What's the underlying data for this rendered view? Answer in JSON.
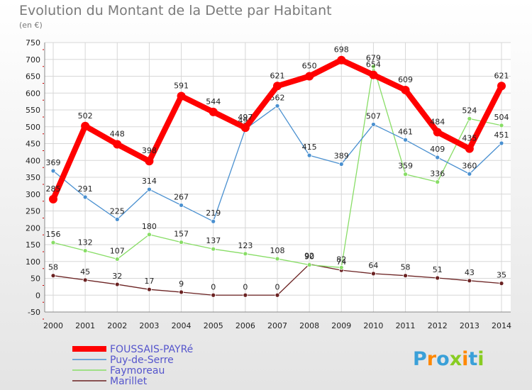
{
  "chart_data": {
    "type": "line",
    "title": "Evolution du Montant de la Dette par Habitant",
    "subtitle": "(en €)",
    "x": [
      "2000",
      "2001",
      "2002",
      "2003",
      "2004",
      "2005",
      "2006",
      "2007",
      "2008",
      "2009",
      "2010",
      "2011",
      "2012",
      "2013",
      "2014"
    ],
    "ylim": [
      -50,
      750
    ],
    "yticks": [
      -50,
      0,
      50,
      100,
      150,
      200,
      250,
      300,
      350,
      400,
      450,
      500,
      550,
      600,
      650,
      700,
      750
    ],
    "grid": true,
    "legend_position": "bottom-left",
    "series": [
      {
        "name": "FOUSSAIS-PAYRé",
        "color": "#ff0000",
        "values": [
          285,
          502,
          448,
          398,
          591,
          544,
          497,
          621,
          650,
          698,
          654,
          609,
          484,
          435,
          621
        ]
      },
      {
        "name": "Puy-de-Serre",
        "color": "#4a90d0",
        "values": [
          369,
          291,
          225,
          314,
          267,
          219,
          493,
          562,
          415,
          389,
          507,
          461,
          409,
          360,
          451
        ]
      },
      {
        "name": "Faymoreau",
        "color": "#88dd66",
        "values": [
          156,
          132,
          107,
          180,
          157,
          137,
          123,
          108,
          90,
          82,
          679,
          359,
          336,
          524,
          504
        ]
      },
      {
        "name": "Marillet",
        "color": "#6b2222",
        "values": [
          58,
          45,
          32,
          17,
          9,
          0,
          0,
          0,
          92,
          74,
          64,
          58,
          51,
          43,
          35
        ]
      }
    ]
  },
  "logo": {
    "text": "Proxiti"
  }
}
